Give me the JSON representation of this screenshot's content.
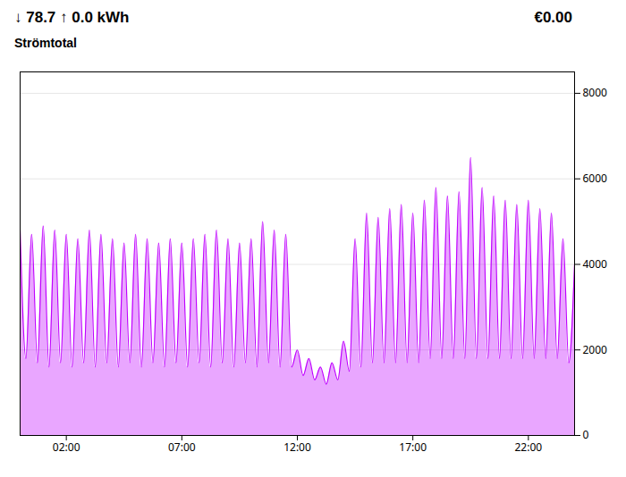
{
  "chart_data": {
    "type": "area",
    "title": "↓ 78.7 ↑ 0.0 kWh",
    "subtitle": "Strömtotal",
    "annotations": [
      "€0.00"
    ],
    "color": "#bf00ff",
    "x": [
      0.0,
      0.25,
      0.5,
      0.75,
      1.0,
      1.25,
      1.5,
      1.75,
      2.0,
      2.25,
      2.5,
      2.75,
      3.0,
      3.25,
      3.5,
      3.75,
      4.0,
      4.25,
      4.5,
      4.75,
      5.0,
      5.25,
      5.5,
      5.75,
      6.0,
      6.25,
      6.5,
      6.75,
      7.0,
      7.25,
      7.5,
      7.75,
      8.0,
      8.25,
      8.5,
      8.75,
      9.0,
      9.25,
      9.5,
      9.75,
      10.0,
      10.25,
      10.5,
      10.75,
      11.0,
      11.25,
      11.5,
      11.75,
      12.0,
      12.25,
      12.5,
      12.75,
      13.0,
      13.25,
      13.5,
      13.75,
      14.0,
      14.25,
      14.5,
      14.75,
      15.0,
      15.25,
      15.5,
      15.75,
      16.0,
      16.25,
      16.5,
      16.75,
      17.0,
      17.25,
      17.5,
      17.75,
      18.0,
      18.25,
      18.5,
      18.75,
      19.0,
      19.25,
      19.5,
      19.75,
      20.0,
      20.25,
      20.5,
      20.75,
      21.0,
      21.25,
      21.5,
      21.75,
      22.0,
      22.25,
      22.5,
      22.75,
      23.0,
      23.25,
      23.5,
      23.75,
      24.0
    ],
    "values": [
      4800,
      1800,
      4700,
      1700,
      4900,
      1600,
      4800,
      1700,
      4700,
      1600,
      4600,
      1700,
      4800,
      1600,
      4700,
      1700,
      4600,
      1600,
      4500,
      1700,
      4700,
      1600,
      4600,
      1700,
      4500,
      1600,
      4600,
      1700,
      4500,
      1600,
      4600,
      1700,
      4700,
      1600,
      4800,
      1700,
      4600,
      1600,
      4500,
      1700,
      4600,
      1600,
      5000,
      1700,
      4800,
      1600,
      4700,
      1600,
      2000,
      1400,
      1800,
      1300,
      1600,
      1200,
      1700,
      1300,
      2200,
      1500,
      4600,
      1600,
      5200,
      1700,
      5100,
      1700,
      5300,
      1700,
      5400,
      1700,
      5200,
      1700,
      5500,
      1800,
      5800,
      1800,
      5600,
      1800,
      5700,
      1800,
      6500,
      1800,
      5800,
      1800,
      5600,
      1800,
      5500,
      1800,
      5400,
      1800,
      5500,
      1800,
      5300,
      1800,
      5200,
      1800,
      4600,
      1700,
      4000
    ],
    "xlim": [
      0,
      24
    ],
    "xticks": [
      {
        "value": 2,
        "label": "02:00"
      },
      {
        "value": 7,
        "label": "07:00"
      },
      {
        "value": 12,
        "label": "12:00"
      },
      {
        "value": 17,
        "label": "17:00"
      },
      {
        "value": 22,
        "label": "22:00"
      }
    ],
    "ylim": [
      0,
      8500
    ],
    "yticks": [
      0,
      2000,
      4000,
      6000,
      8000
    ],
    "grid": true
  }
}
